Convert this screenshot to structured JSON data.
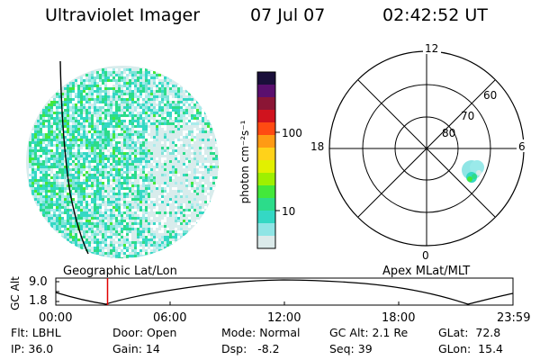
{
  "header": {
    "title": "Ultraviolet Imager",
    "date": "07 Jul 07",
    "time": "02:42:52 UT"
  },
  "left_panel": {
    "caption": "Geographic Lat/Lon"
  },
  "colorbar": {
    "unit_label": "photon cm⁻²s⁻¹",
    "tick_labels": [
      "100",
      "10"
    ],
    "colors": [
      "#1a0f3a",
      "#5a0f6e",
      "#8b1535",
      "#d0131e",
      "#ff4a12",
      "#ff9a14",
      "#ffd21a",
      "#e2f000",
      "#9ef000",
      "#43e83a",
      "#2cdc8a",
      "#34d8c4",
      "#8fe5e5",
      "#dbeaea"
    ]
  },
  "right_panel": {
    "caption": "Apex MLat/MLT",
    "mlt_labels": [
      "12",
      "18",
      "6",
      "0"
    ],
    "mlat_labels": [
      "60",
      "70",
      "80"
    ]
  },
  "timeline": {
    "ylabel": "GC Alt",
    "y_ticks": [
      "9.0",
      "1.8"
    ],
    "x_ticks": [
      "00:00",
      "06:00",
      "12:00",
      "18:00",
      "23:59"
    ],
    "current_time": "02:42:52",
    "marker_color": "#e00000"
  },
  "info": {
    "row1": {
      "flt": "Flt: LBHL",
      "door": "Door: Open",
      "mode": "Mode: Normal",
      "gcalt": "GC Alt: 2.1 Re",
      "glat": "GLat:  72.8"
    },
    "row2": {
      "ip": "IP: 36.0",
      "gain": "Gain: 14",
      "dsp": "Dsp:   -8.2",
      "seq": "Seq: 39",
      "glon": "GLon:  15.4"
    }
  }
}
